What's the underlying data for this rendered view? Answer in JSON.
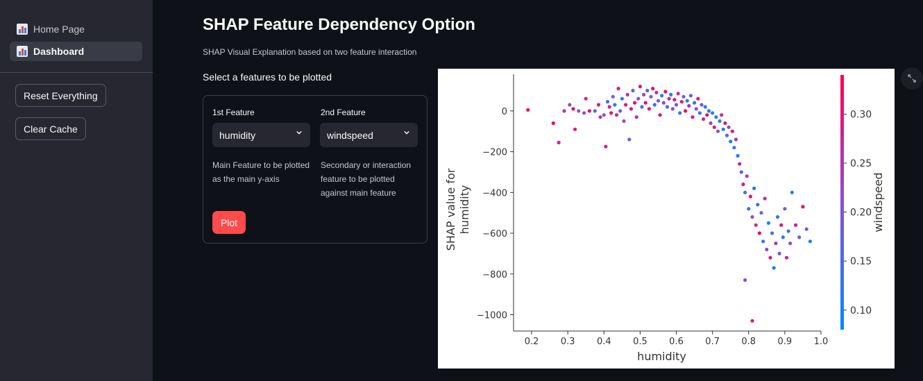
{
  "sidebar": {
    "items": [
      {
        "label": "Home Page",
        "icon": "bar-chart-icon",
        "active": false
      },
      {
        "label": "Dashboard",
        "icon": "bar-chart-icon",
        "active": true
      }
    ],
    "buttons": {
      "reset": "Reset Everything",
      "clear": "Clear Cache"
    }
  },
  "main": {
    "title": "SHAP Feature Dependency Option",
    "subtitle": "SHAP Visual Explanation based on two feature interaction",
    "select_label": "Select a features to be plotted",
    "form": {
      "feature1": {
        "label": "1st Feature",
        "value": "humidity",
        "help": "Main Feature to be plotted as the main y-axis"
      },
      "feature2": {
        "label": "2nd Feature",
        "value": "windspeed",
        "help": "Secondary or interaction feature to be plotted against main feature"
      },
      "plot_label": "Plot"
    }
  },
  "colors": {
    "accent": "#ff4b4b",
    "background": "#0e1117",
    "sidebar": "#262730",
    "cbar_low": "#008bfb",
    "cbar_high": "#ff0052"
  },
  "chart_data": {
    "type": "scatter",
    "xlabel": "humidity",
    "ylabel": "SHAP value for\nhumidity",
    "colorbar_label": "windspeed",
    "xlim": [
      0.15,
      1.0
    ],
    "ylim": [
      -1080,
      180
    ],
    "xticks": [
      0.2,
      0.3,
      0.4,
      0.5,
      0.6,
      0.7,
      0.8,
      0.9,
      1.0
    ],
    "yticks": [
      0,
      -200,
      -400,
      -600,
      -800,
      -1000
    ],
    "colorbar_range": [
      0.08,
      0.34
    ],
    "colorbar_ticks": [
      0.1,
      0.15,
      0.2,
      0.25,
      0.3
    ],
    "colormap": [
      "#008bfb",
      "#ff0052"
    ],
    "points": [
      {
        "x": 0.19,
        "y": 5,
        "c": 0.33
      },
      {
        "x": 0.26,
        "y": -60,
        "c": 0.33
      },
      {
        "x": 0.275,
        "y": -155,
        "c": 0.28
      },
      {
        "x": 0.29,
        "y": 0,
        "c": 0.25
      },
      {
        "x": 0.305,
        "y": 30,
        "c": 0.2
      },
      {
        "x": 0.315,
        "y": 10,
        "c": 0.32
      },
      {
        "x": 0.32,
        "y": -90,
        "c": 0.3
      },
      {
        "x": 0.33,
        "y": 0,
        "c": 0.2
      },
      {
        "x": 0.345,
        "y": -10,
        "c": 0.22
      },
      {
        "x": 0.35,
        "y": 60,
        "c": 0.28
      },
      {
        "x": 0.36,
        "y": 0,
        "c": 0.31
      },
      {
        "x": 0.375,
        "y": 0,
        "c": 0.18
      },
      {
        "x": 0.385,
        "y": 30,
        "c": 0.3
      },
      {
        "x": 0.39,
        "y": -30,
        "c": 0.25
      },
      {
        "x": 0.4,
        "y": -20,
        "c": 0.21
      },
      {
        "x": 0.405,
        "y": -175,
        "c": 0.3
      },
      {
        "x": 0.41,
        "y": 45,
        "c": 0.15
      },
      {
        "x": 0.415,
        "y": 20,
        "c": 0.28
      },
      {
        "x": 0.42,
        "y": -10,
        "c": 0.33
      },
      {
        "x": 0.425,
        "y": 70,
        "c": 0.2
      },
      {
        "x": 0.43,
        "y": 30,
        "c": 0.12
      },
      {
        "x": 0.435,
        "y": -20,
        "c": 0.26
      },
      {
        "x": 0.44,
        "y": 110,
        "c": 0.3
      },
      {
        "x": 0.445,
        "y": 0,
        "c": 0.18
      },
      {
        "x": 0.45,
        "y": 60,
        "c": 0.13
      },
      {
        "x": 0.455,
        "y": -50,
        "c": 0.22
      },
      {
        "x": 0.46,
        "y": 30,
        "c": 0.3
      },
      {
        "x": 0.465,
        "y": 80,
        "c": 0.25
      },
      {
        "x": 0.47,
        "y": -140,
        "c": 0.18
      },
      {
        "x": 0.475,
        "y": 10,
        "c": 0.3
      },
      {
        "x": 0.48,
        "y": 100,
        "c": 0.14
      },
      {
        "x": 0.485,
        "y": 40,
        "c": 0.32
      },
      {
        "x": 0.49,
        "y": -30,
        "c": 0.27
      },
      {
        "x": 0.495,
        "y": 60,
        "c": 0.2
      },
      {
        "x": 0.5,
        "y": 120,
        "c": 0.3
      },
      {
        "x": 0.505,
        "y": 20,
        "c": 0.12
      },
      {
        "x": 0.51,
        "y": 80,
        "c": 0.24
      },
      {
        "x": 0.515,
        "y": 40,
        "c": 0.33
      },
      {
        "x": 0.52,
        "y": 100,
        "c": 0.17
      },
      {
        "x": 0.525,
        "y": 10,
        "c": 0.29
      },
      {
        "x": 0.53,
        "y": 70,
        "c": 0.21
      },
      {
        "x": 0.535,
        "y": 110,
        "c": 0.31
      },
      {
        "x": 0.54,
        "y": 30,
        "c": 0.14
      },
      {
        "x": 0.545,
        "y": 90,
        "c": 0.26
      },
      {
        "x": 0.55,
        "y": 50,
        "c": 0.19
      },
      {
        "x": 0.555,
        "y": -20,
        "c": 0.3
      },
      {
        "x": 0.56,
        "y": 75,
        "c": 0.11
      },
      {
        "x": 0.565,
        "y": 40,
        "c": 0.23
      },
      {
        "x": 0.57,
        "y": 95,
        "c": 0.32
      },
      {
        "x": 0.575,
        "y": 20,
        "c": 0.16
      },
      {
        "x": 0.58,
        "y": 60,
        "c": 0.28
      },
      {
        "x": 0.585,
        "y": 80,
        "c": 0.12
      },
      {
        "x": 0.59,
        "y": 10,
        "c": 0.21
      },
      {
        "x": 0.595,
        "y": 55,
        "c": 0.3
      },
      {
        "x": 0.6,
        "y": 30,
        "c": 0.18
      },
      {
        "x": 0.605,
        "y": 85,
        "c": 0.25
      },
      {
        "x": 0.61,
        "y": -10,
        "c": 0.13
      },
      {
        "x": 0.615,
        "y": 45,
        "c": 0.29
      },
      {
        "x": 0.62,
        "y": 70,
        "c": 0.2
      },
      {
        "x": 0.625,
        "y": 0,
        "c": 0.33
      },
      {
        "x": 0.63,
        "y": 50,
        "c": 0.11
      },
      {
        "x": 0.635,
        "y": 25,
        "c": 0.26
      },
      {
        "x": 0.64,
        "y": 75,
        "c": 0.17
      },
      {
        "x": 0.645,
        "y": -30,
        "c": 0.3
      },
      {
        "x": 0.65,
        "y": 40,
        "c": 0.14
      },
      {
        "x": 0.655,
        "y": 10,
        "c": 0.22
      },
      {
        "x": 0.66,
        "y": 60,
        "c": 0.3
      },
      {
        "x": 0.665,
        "y": -10,
        "c": 0.12
      },
      {
        "x": 0.67,
        "y": 30,
        "c": 0.19
      },
      {
        "x": 0.675,
        "y": -40,
        "c": 0.27
      },
      {
        "x": 0.68,
        "y": 20,
        "c": 0.13
      },
      {
        "x": 0.685,
        "y": -20,
        "c": 0.31
      },
      {
        "x": 0.69,
        "y": 0,
        "c": 0.1
      },
      {
        "x": 0.695,
        "y": -60,
        "c": 0.24
      },
      {
        "x": 0.7,
        "y": -10,
        "c": 0.12
      },
      {
        "x": 0.705,
        "y": -80,
        "c": 0.3
      },
      {
        "x": 0.71,
        "y": -30,
        "c": 0.1
      },
      {
        "x": 0.715,
        "y": -100,
        "c": 0.2
      },
      {
        "x": 0.72,
        "y": -50,
        "c": 0.13
      },
      {
        "x": 0.725,
        "y": -20,
        "c": 0.27
      },
      {
        "x": 0.73,
        "y": -90,
        "c": 0.11
      },
      {
        "x": 0.735,
        "y": -60,
        "c": 0.3
      },
      {
        "x": 0.74,
        "y": -120,
        "c": 0.16
      },
      {
        "x": 0.745,
        "y": -80,
        "c": 0.22
      },
      {
        "x": 0.75,
        "y": -150,
        "c": 0.1
      },
      {
        "x": 0.755,
        "y": -100,
        "c": 0.3
      },
      {
        "x": 0.76,
        "y": -180,
        "c": 0.12
      },
      {
        "x": 0.765,
        "y": -140,
        "c": 0.25
      },
      {
        "x": 0.77,
        "y": -220,
        "c": 0.11
      },
      {
        "x": 0.775,
        "y": -260,
        "c": 0.28
      },
      {
        "x": 0.78,
        "y": -300,
        "c": 0.17
      },
      {
        "x": 0.785,
        "y": -360,
        "c": 0.3
      },
      {
        "x": 0.79,
        "y": -400,
        "c": 0.12
      },
      {
        "x": 0.795,
        "y": -320,
        "c": 0.24
      },
      {
        "x": 0.8,
        "y": -480,
        "c": 0.15
      },
      {
        "x": 0.805,
        "y": -420,
        "c": 0.31
      },
      {
        "x": 0.81,
        "y": -520,
        "c": 0.2
      },
      {
        "x": 0.815,
        "y": -380,
        "c": 0.1
      },
      {
        "x": 0.82,
        "y": -560,
        "c": 0.26
      },
      {
        "x": 0.825,
        "y": -460,
        "c": 0.14
      },
      {
        "x": 0.83,
        "y": -600,
        "c": 0.33
      },
      {
        "x": 0.835,
        "y": -500,
        "c": 0.18
      },
      {
        "x": 0.84,
        "y": -640,
        "c": 0.12
      },
      {
        "x": 0.845,
        "y": -430,
        "c": 0.27
      },
      {
        "x": 0.85,
        "y": -680,
        "c": 0.22
      },
      {
        "x": 0.855,
        "y": -550,
        "c": 0.11
      },
      {
        "x": 0.86,
        "y": -720,
        "c": 0.3
      },
      {
        "x": 0.865,
        "y": -600,
        "c": 0.15
      },
      {
        "x": 0.87,
        "y": -770,
        "c": 0.1
      },
      {
        "x": 0.875,
        "y": -650,
        "c": 0.25
      },
      {
        "x": 0.88,
        "y": -520,
        "c": 0.13
      },
      {
        "x": 0.885,
        "y": -700,
        "c": 0.2
      },
      {
        "x": 0.89,
        "y": -560,
        "c": 0.31
      },
      {
        "x": 0.895,
        "y": -620,
        "c": 0.12
      },
      {
        "x": 0.9,
        "y": -480,
        "c": 0.17
      },
      {
        "x": 0.905,
        "y": -720,
        "c": 0.29
      },
      {
        "x": 0.91,
        "y": -590,
        "c": 0.14
      },
      {
        "x": 0.915,
        "y": -650,
        "c": 0.23
      },
      {
        "x": 0.92,
        "y": -400,
        "c": 0.11
      },
      {
        "x": 0.93,
        "y": -560,
        "c": 0.3
      },
      {
        "x": 0.94,
        "y": -620,
        "c": 0.19
      },
      {
        "x": 0.95,
        "y": -470,
        "c": 0.32
      },
      {
        "x": 0.96,
        "y": -580,
        "c": 0.2
      },
      {
        "x": 0.97,
        "y": -640,
        "c": 0.1
      },
      {
        "x": 0.79,
        "y": -830,
        "c": 0.22
      },
      {
        "x": 0.81,
        "y": -1030,
        "c": 0.3
      }
    ]
  }
}
